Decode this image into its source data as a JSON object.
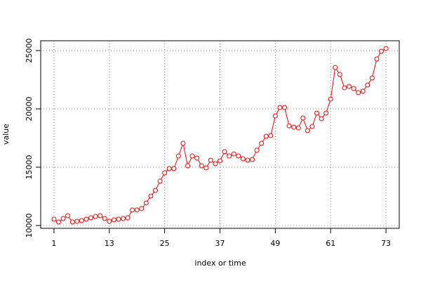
{
  "chart_data": {
    "type": "line",
    "x_label": "index or time",
    "y_label": "value",
    "x": [
      1,
      2,
      3,
      4,
      5,
      6,
      7,
      8,
      9,
      10,
      11,
      12,
      13,
      14,
      15,
      16,
      17,
      18,
      19,
      20,
      21,
      22,
      23,
      24,
      25,
      26,
      27,
      28,
      29,
      30,
      31,
      32,
      33,
      34,
      35,
      36,
      37,
      38,
      39,
      40,
      41,
      42,
      43,
      44,
      45,
      46,
      47,
      48,
      49,
      50,
      51,
      52,
      53,
      54,
      55,
      56,
      57,
      58,
      59,
      60,
      61,
      62,
      63,
      64,
      65,
      66,
      67,
      68,
      69,
      70,
      71,
      72,
      73
    ],
    "series": [
      {
        "color": "#ff0000",
        "values": [
          10540,
          10300,
          10600,
          10840,
          10300,
          10360,
          10420,
          10540,
          10660,
          10780,
          10840,
          10600,
          10360,
          10480,
          10540,
          10600,
          10660,
          11330,
          11330,
          11450,
          11930,
          12530,
          13010,
          13800,
          14520,
          14880,
          14880,
          15960,
          17050,
          15120,
          15960,
          15780,
          15120,
          14940,
          15600,
          15300,
          15540,
          16330,
          15960,
          16140,
          15960,
          15720,
          15600,
          15660,
          16450,
          17050,
          17650,
          17710,
          19400,
          20120,
          20120,
          18550,
          18430,
          18370,
          19220,
          18130,
          18490,
          19640,
          19160,
          19640,
          20840,
          23550,
          22950,
          21810,
          21930,
          21750,
          21390,
          21510,
          22050,
          22650,
          24280,
          24940,
          25180
        ]
      }
    ],
    "xlim": [
      -1.88,
      75.88
    ],
    "xticks": [
      1,
      13,
      25,
      37,
      49,
      61,
      73
    ],
    "ylim": [
      9759,
      25843
    ],
    "yticks": [
      10000,
      15000,
      20000,
      25000
    ],
    "grid": true
  }
}
